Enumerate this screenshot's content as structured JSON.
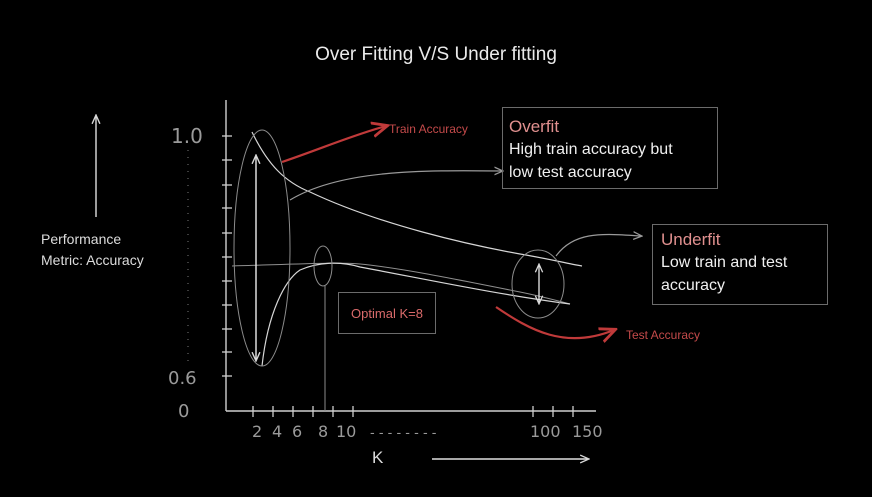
{
  "chart_data": {
    "type": "line",
    "title": "Over Fitting  V/S Under fitting",
    "ylabel_lines": [
      "Performance",
      "Metric: Accuracy"
    ],
    "xlabel": "K",
    "y_ticks": [
      "1.0",
      "0.6",
      "0"
    ],
    "x_ticks": [
      "2",
      "4",
      "6",
      "8",
      "10",
      "100",
      "150"
    ],
    "x_ellipsis": "- - - - - - - -",
    "series": [
      {
        "name": "Train Accuracy",
        "color": "#c44a4a",
        "points": [
          [
            2,
            0.99
          ],
          [
            4,
            0.95
          ],
          [
            8,
            0.9
          ],
          [
            20,
            0.86
          ],
          [
            60,
            0.8
          ],
          [
            100,
            0.76
          ],
          [
            120,
            0.75
          ]
        ]
      },
      {
        "name": "Test Accuracy",
        "color": "#c44a4a",
        "points": [
          [
            2,
            0.64
          ],
          [
            4,
            0.7
          ],
          [
            6,
            0.73
          ],
          [
            8,
            0.74
          ],
          [
            20,
            0.73
          ],
          [
            60,
            0.7
          ],
          [
            100,
            0.67
          ],
          [
            120,
            0.66
          ]
        ]
      }
    ],
    "annotations": {
      "optimal": "Optimal K=8",
      "overfit": {
        "title": "Overfit",
        "lines": [
          "High train accuracy but",
          "low test accuracy"
        ]
      },
      "underfit": {
        "title": "Underfit",
        "lines": [
          "Low train and test",
          "accuracy"
        ]
      }
    }
  }
}
